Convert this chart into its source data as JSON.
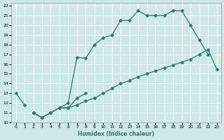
{
  "xlabel": "Humidex (Indice chaleur)",
  "background_color": "#cce8e8",
  "grid_color": "#ffffff",
  "line_color": "#2d7a6e",
  "xlim": [
    -0.5,
    23.5
  ],
  "ylim": [
    10,
    22.3
  ],
  "xticks": [
    0,
    1,
    2,
    3,
    4,
    5,
    6,
    7,
    8,
    9,
    10,
    11,
    12,
    13,
    14,
    15,
    16,
    17,
    18,
    19,
    20,
    21,
    22,
    23
  ],
  "yticks": [
    10,
    11,
    12,
    13,
    14,
    15,
    16,
    17,
    18,
    19,
    20,
    21,
    22
  ],
  "series": [
    {
      "x": [
        0,
        1
      ],
      "y": [
        13,
        11.8
      ]
    },
    {
      "x": [
        2,
        3,
        4,
        5,
        6,
        7,
        8
      ],
      "y": [
        11,
        10.5,
        11,
        11.5,
        11.5,
        12.5,
        13
      ]
    },
    {
      "x": [
        2,
        3,
        4,
        5,
        6,
        7,
        8,
        9,
        10,
        11,
        12,
        13,
        14,
        15,
        16,
        17,
        18,
        19,
        20,
        21,
        22,
        23
      ],
      "y": [
        11,
        10.5,
        11,
        11.5,
        11.5,
        11.8,
        12.2,
        12.5,
        13,
        13.5,
        14,
        14.3,
        14.7,
        15,
        15.3,
        15.6,
        15.9,
        16.2,
        16.5,
        17,
        17.5,
        15.5
      ]
    },
    {
      "x": [
        2,
        3,
        4,
        5,
        6,
        7,
        8,
        9,
        10,
        11,
        12,
        13,
        14,
        15,
        16,
        17,
        18,
        19,
        20,
        21,
        22
      ],
      "y": [
        11,
        10.5,
        11,
        11.5,
        12,
        16.7,
        16.6,
        18,
        18.7,
        19,
        20.5,
        20.5,
        21.5,
        21,
        21,
        21,
        21.5,
        21.5,
        20,
        18.5,
        17
      ]
    }
  ]
}
